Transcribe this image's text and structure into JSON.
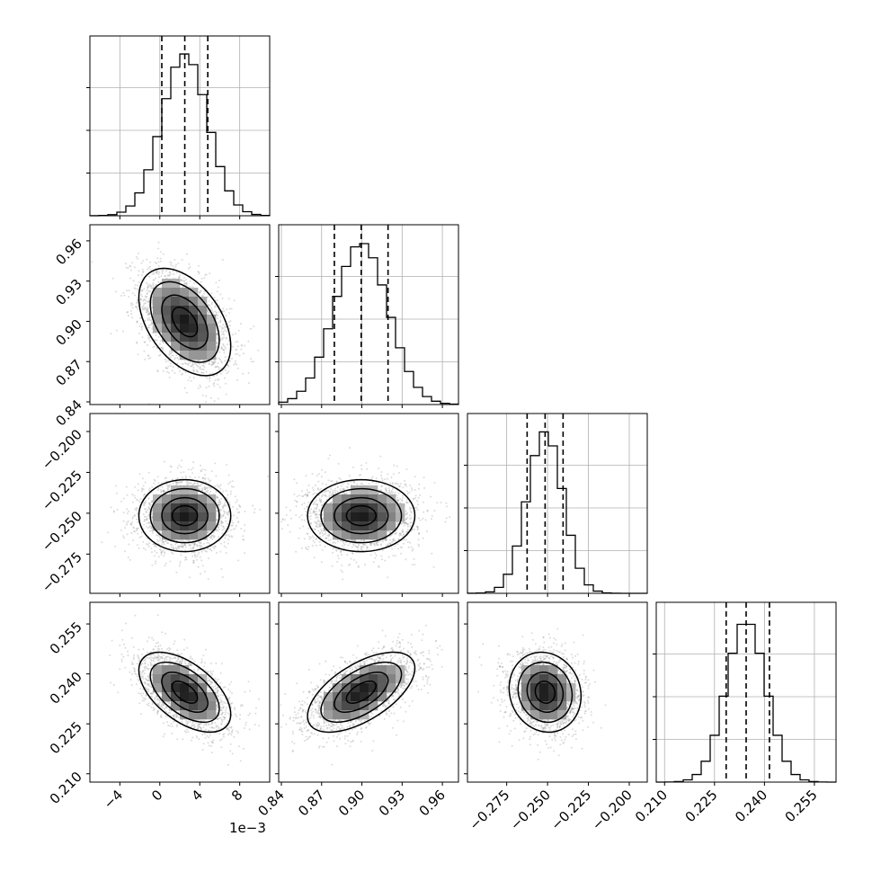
{
  "chart_data": {
    "type": "corner",
    "grid": true,
    "quantile_lines": "dashed",
    "x_offset_label": "1e-3",
    "parameters": [
      {
        "range": [
          -7.0,
          11.0
        ],
        "ticks": [
          "-4",
          "0",
          "4",
          "8"
        ],
        "tick_values": [
          -4,
          0,
          4,
          8
        ],
        "scale": 0.001,
        "median": 2.5,
        "q16": 0.2,
        "q84": 4.8,
        "std": 2.3
      },
      {
        "range": [
          0.838,
          0.972
        ],
        "ticks": [
          "0.84",
          "0.87",
          "0.90",
          "0.93",
          "0.96"
        ],
        "tick_values": [
          0.84,
          0.87,
          0.9,
          0.93,
          0.96
        ],
        "median": 0.8995,
        "q16": 0.8795,
        "q84": 0.9195,
        "std": 0.02
      },
      {
        "range": [
          -0.299,
          -0.189
        ],
        "ticks": [
          "-0.275",
          "-0.250",
          "-0.225",
          "-0.200"
        ],
        "tick_values": [
          -0.275,
          -0.25,
          -0.225,
          -0.2
        ],
        "median": -0.2515,
        "q16": -0.2625,
        "q84": -0.2405,
        "std": 0.011
      },
      {
        "range": [
          0.2075,
          0.2615
        ],
        "ticks": [
          "0.210",
          "0.225",
          "0.240",
          "0.255"
        ],
        "tick_values": [
          0.21,
          0.225,
          0.24,
          0.255
        ],
        "median": 0.2345,
        "q16": 0.2285,
        "q84": 0.2415,
        "std": 0.006
      }
    ],
    "y_ticks_by_row": [
      null,
      {
        "ticks": [
          "0.84",
          "0.87",
          "0.90",
          "0.93",
          "0.96"
        ],
        "tick_values": [
          0.84,
          0.87,
          0.9,
          0.93,
          0.96
        ]
      },
      {
        "ticks": [
          "-0.275",
          "-0.250",
          "-0.225",
          "-0.200"
        ],
        "tick_values": [
          -0.275,
          -0.25,
          -0.225,
          -0.2
        ]
      },
      {
        "ticks": [
          "0.210",
          "0.225",
          "0.240",
          "0.255"
        ],
        "tick_values": [
          0.21,
          0.225,
          0.24,
          0.255
        ]
      }
    ],
    "correlations": {
      "1_0": -0.45,
      "2_0": 0.0,
      "2_1": 0.0,
      "3_0": -0.55,
      "3_1": 0.6,
      "3_2": -0.1
    }
  }
}
